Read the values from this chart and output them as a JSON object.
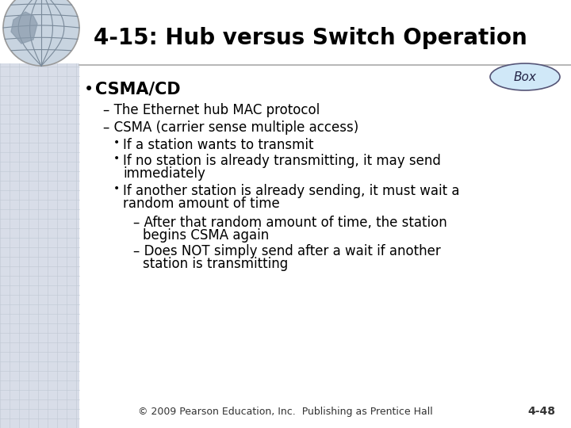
{
  "title": "4-15: Hub versus Switch Operation",
  "box_label": "Box",
  "bullet1": "CSMA/CD",
  "sub1": "– The Ethernet hub MAC protocol",
  "sub2": "– CSMA (carrier sense multiple access)",
  "sub2a": "If a station wants to transmit",
  "sub2b_line1": "If no station is already transmitting, it may send",
  "sub2b_line2": "immediately",
  "sub2c_line1": "If another station is already sending, it must wait a",
  "sub2c_line2": "random amount of time",
  "sub2c1_line1": "– After that random amount of time, the station",
  "sub2c1_line2": "begins CSMA again",
  "sub2c2_line1": "– Does NOT simply send after a wait if another",
  "sub2c2_line2": "station is transmitting",
  "footer": "© 2009 Pearson Education, Inc.  Publishing as Prentice Hall",
  "page_num": "4-48",
  "bg_color": "#ffffff",
  "title_color": "#000000",
  "text_color": "#000000",
  "title_fontsize": 20,
  "body_fontsize": 12,
  "small_fontsize": 9,
  "bullet1_fontsize": 15,
  "box_ellipse_color": "#d0e8f8",
  "box_ellipse_edge": "#555577",
  "separator_line_color": "#aaaaaa",
  "left_panel_color": "#d8dde8",
  "globe_color": "#c0ccd8"
}
